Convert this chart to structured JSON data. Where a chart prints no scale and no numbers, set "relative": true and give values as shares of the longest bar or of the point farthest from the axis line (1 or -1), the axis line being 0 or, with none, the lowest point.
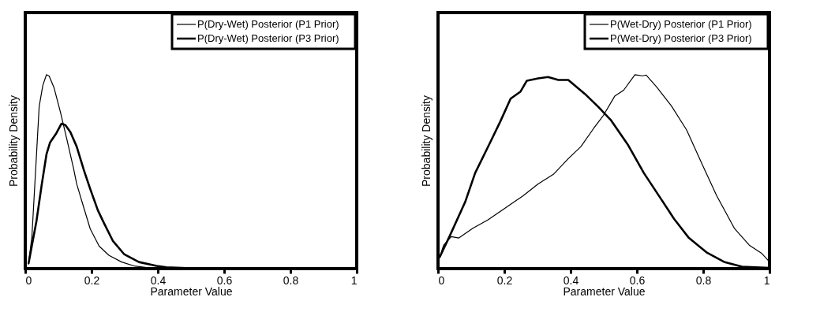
{
  "chart_data": [
    {
      "type": "line",
      "xlabel": "Parameter Value",
      "ylabel": "Probability Density",
      "relative": true,
      "xlim": [
        0,
        1
      ],
      "xticks": [
        0,
        0.2,
        0.4,
        0.6,
        0.8,
        1
      ],
      "legend": "top right",
      "grid": false,
      "tick_labels": "x",
      "line_style": "solid",
      "marker": "none",
      "series": [
        {
          "name": "P(Dry-Wet) Posterior (P1 Prior)",
          "color": "#000000",
          "x": [
            0.01,
            0.02,
            0.025,
            0.042,
            0.053,
            0.064,
            0.072,
            0.087,
            0.106,
            0.125,
            0.146,
            0.155,
            0.174,
            0.196,
            0.223,
            0.253,
            0.291,
            0.328,
            0.381,
            0.45
          ],
          "values": [
            0.027,
            0.164,
            0.315,
            0.836,
            0.945,
            1.0,
            0.993,
            0.932,
            0.808,
            0.671,
            0.514,
            0.438,
            0.329,
            0.205,
            0.116,
            0.068,
            0.034,
            0.014,
            0.003,
            0.0
          ]
        },
        {
          "name": "P(Dry-Wet) Posterior (P3 Prior)",
          "color": "#000000",
          "x": [
            0.01,
            0.034,
            0.049,
            0.064,
            0.075,
            0.094,
            0.109,
            0.121,
            0.136,
            0.155,
            0.177,
            0.196,
            0.219,
            0.238,
            0.264,
            0.298,
            0.343,
            0.396,
            0.426,
            0.487
          ],
          "values": [
            0.027,
            0.247,
            0.425,
            0.589,
            0.651,
            0.699,
            0.747,
            0.74,
            0.705,
            0.63,
            0.507,
            0.411,
            0.301,
            0.233,
            0.144,
            0.075,
            0.034,
            0.014,
            0.007,
            0.003
          ]
        }
      ]
    },
    {
      "type": "line",
      "xlabel": "Parameter Value",
      "ylabel": "Probability Density",
      "relative": true,
      "xlim": [
        0,
        1
      ],
      "xticks": [
        0,
        0.2,
        0.4,
        0.6,
        0.8,
        1
      ],
      "legend": "top right",
      "grid": false,
      "tick_labels": "x",
      "line_style": "solid",
      "marker": "none",
      "series": [
        {
          "name": "P(Wet-Dry) Posterior (P1 Prior)",
          "color": "#000000",
          "x": [
            0.005,
            0.017,
            0.04,
            0.063,
            0.105,
            0.15,
            0.203,
            0.256,
            0.302,
            0.348,
            0.393,
            0.431,
            0.469,
            0.499,
            0.533,
            0.56,
            0.594,
            0.617,
            0.628,
            0.659,
            0.704,
            0.75,
            0.799,
            0.841,
            0.894,
            0.939,
            0.977,
            1.0
          ],
          "values": [
            0.059,
            0.121,
            0.165,
            0.158,
            0.208,
            0.251,
            0.313,
            0.375,
            0.437,
            0.486,
            0.567,
            0.629,
            0.722,
            0.79,
            0.889,
            0.92,
            1.0,
            0.994,
            0.998,
            0.938,
            0.839,
            0.715,
            0.53,
            0.375,
            0.208,
            0.121,
            0.078,
            0.035
          ]
        },
        {
          "name": "P(Wet-Dry) Posterior (P3 Prior)",
          "color": "#000000",
          "x": [
            0.005,
            0.036,
            0.082,
            0.112,
            0.158,
            0.188,
            0.219,
            0.249,
            0.268,
            0.302,
            0.332,
            0.363,
            0.393,
            0.443,
            0.484,
            0.522,
            0.572,
            0.621,
            0.674,
            0.712,
            0.757,
            0.81,
            0.863,
            0.917,
            1.0
          ],
          "values": [
            0.059,
            0.171,
            0.344,
            0.493,
            0.653,
            0.759,
            0.876,
            0.913,
            0.969,
            0.981,
            0.988,
            0.973,
            0.973,
            0.901,
            0.833,
            0.765,
            0.641,
            0.493,
            0.356,
            0.257,
            0.158,
            0.084,
            0.035,
            0.01,
            0.004
          ]
        }
      ]
    }
  ]
}
